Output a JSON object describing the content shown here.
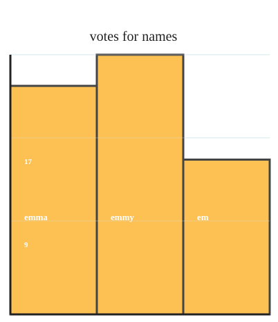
{
  "chart_data": {
    "type": "bar",
    "title": "votes for names",
    "xlabel": "",
    "ylabel": "",
    "categories": [
      "emma",
      "emmy",
      "em"
    ],
    "values": [
      22,
      25,
      14.9
    ],
    "ylim": [
      0,
      25
    ],
    "tick_values": [
      17,
      9
    ],
    "grid": true,
    "legend": "none"
  },
  "colors": {
    "bar_fill": "#fdbd4a",
    "bar_edge": "#444444",
    "axis": "#222222",
    "grid": "#d8e6ec",
    "label_text": "#ffffff"
  }
}
